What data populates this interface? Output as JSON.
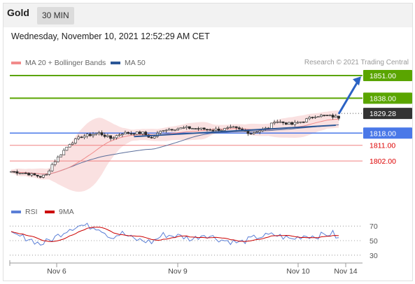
{
  "header": {
    "instrument": "Gold",
    "timeframe": "30 MIN"
  },
  "timestamp": "Wednesday, November 10, 2021 12:52:29 AM CET",
  "legend": {
    "items": [
      {
        "label": "MA 20 + Bollinger Bands",
        "color": "#f28b8b"
      },
      {
        "label": "MA 50",
        "color": "#2b5797"
      }
    ],
    "credit": "Research © 2021 Trading Central"
  },
  "rsi_legend": {
    "items": [
      {
        "label": "RSI",
        "color": "#5b7fd6"
      },
      {
        "label": "9MA",
        "color": "#cc0000"
      }
    ]
  },
  "colors": {
    "resistance": "#5aa500",
    "support": "#4a78e8",
    "support_light": "#f08080",
    "support_text": "#dd0000",
    "current": "#333333",
    "trendline": "#2b5797",
    "bollinger_fill": "#fadede"
  },
  "chart_data": [
    {
      "type": "candlestick",
      "ylim": [
        1780,
        1855
      ],
      "x_ticks": [
        "Nov 6",
        "Nov 9",
        "Nov 10",
        "Nov 14"
      ],
      "levels": [
        {
          "label": "1851.00",
          "value": 1851.0,
          "kind": "resistance"
        },
        {
          "label": "1838.00",
          "value": 1838.0,
          "kind": "resistance"
        },
        {
          "label": "1829.28",
          "value": 1829.28,
          "kind": "current"
        },
        {
          "label": "1818.00",
          "value": 1818.0,
          "kind": "support"
        },
        {
          "label": "1811.00",
          "value": 1811.0,
          "kind": "support_light"
        },
        {
          "label": "1802.00",
          "value": 1802.0,
          "kind": "support_light"
        }
      ],
      "close_keypoints": [
        [
          0,
          1796
        ],
        [
          5,
          1795
        ],
        [
          10,
          1793
        ],
        [
          12,
          1794
        ],
        [
          14,
          1800
        ],
        [
          18,
          1808
        ],
        [
          20,
          1812
        ],
        [
          24,
          1816
        ],
        [
          30,
          1818
        ],
        [
          34,
          1815
        ],
        [
          38,
          1818
        ],
        [
          45,
          1818
        ],
        [
          48,
          1815
        ],
        [
          52,
          1820
        ],
        [
          60,
          1821
        ],
        [
          68,
          1820
        ],
        [
          72,
          1820
        ],
        [
          76,
          1821
        ],
        [
          82,
          1818
        ],
        [
          88,
          1821
        ],
        [
          90,
          1825
        ],
        [
          96,
          1823
        ],
        [
          100,
          1825
        ],
        [
          104,
          1828
        ],
        [
          108,
          1828
        ],
        [
          112,
          1827
        ]
      ]
    },
    {
      "type": "line",
      "title": "RSI",
      "ylim": [
        25,
        75
      ],
      "y_ticks": [
        70,
        50,
        30
      ],
      "rsi_keypoints": [
        [
          0,
          58
        ],
        [
          6,
          53
        ],
        [
          10,
          45
        ],
        [
          14,
          52
        ],
        [
          20,
          67
        ],
        [
          24,
          71
        ],
        [
          30,
          68
        ],
        [
          34,
          55
        ],
        [
          38,
          60
        ],
        [
          42,
          52
        ],
        [
          48,
          48
        ],
        [
          52,
          58
        ],
        [
          58,
          56
        ],
        [
          62,
          52
        ],
        [
          66,
          59
        ],
        [
          72,
          51
        ],
        [
          78,
          47
        ],
        [
          84,
          55
        ],
        [
          90,
          58
        ],
        [
          96,
          52
        ],
        [
          100,
          57
        ],
        [
          104,
          56
        ],
        [
          110,
          60
        ],
        [
          112,
          52
        ]
      ]
    }
  ]
}
